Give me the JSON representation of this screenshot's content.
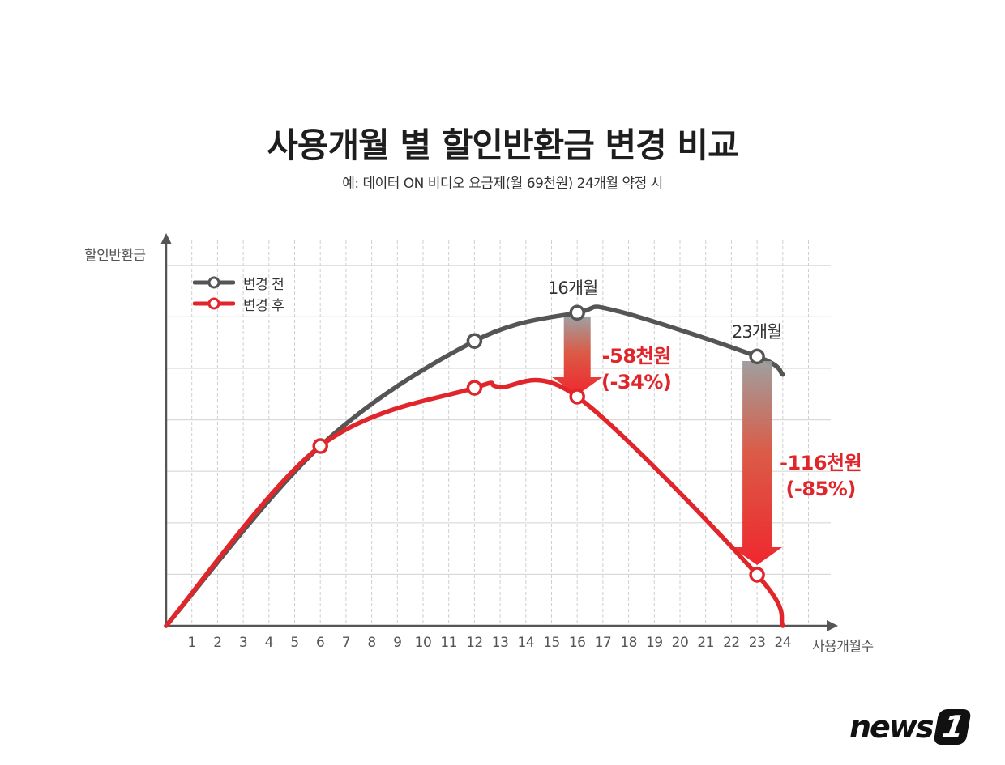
{
  "title": "사용개월 별 할인반환금 변경 비교",
  "subtitle": "예: 데이터 ON 비디오 요금제(월 69천원) 24개월 약정 시",
  "axes": {
    "y_label": "할인반환금",
    "x_label": "사용개월수",
    "x_ticks": [
      "1",
      "2",
      "3",
      "4",
      "5",
      "6",
      "7",
      "8",
      "9",
      "10",
      "11",
      "12",
      "13",
      "14",
      "15",
      "16",
      "17",
      "18",
      "19",
      "20",
      "21",
      "22",
      "23",
      "24"
    ]
  },
  "legend": [
    {
      "label": "변경 전",
      "color": "#555555"
    },
    {
      "label": "변경 후",
      "color": "#e0262b"
    }
  ],
  "annotations": {
    "month16_label": "16개월",
    "month23_label": "23개월",
    "diff16_amount": "-58천원",
    "diff16_percent": "(-34%)",
    "diff23_amount": "-116천원",
    "diff23_percent": "(-85%)"
  },
  "colors": {
    "before": "#555555",
    "after": "#e0262b",
    "grid": "#d9d9d9",
    "axis": "#555555"
  },
  "logo": {
    "text": "news",
    "number": "1"
  },
  "chart_data": {
    "type": "line",
    "title": "사용개월 별 할인반환금 변경 비교",
    "subtitle": "예: 데이터 ON 비디오 요금제(월 69천원) 24개월 약정 시",
    "xlabel": "사용개월수",
    "ylabel": "할인반환금",
    "x": [
      0,
      6,
      12,
      16,
      23,
      24
    ],
    "xlim": [
      0,
      24
    ],
    "ylim": [
      0,
      7
    ],
    "y_units": "grid units (unlabeled axis, relative)",
    "grid": true,
    "legend_position": "top-left",
    "series": [
      {
        "name": "변경 전",
        "color": "#555555",
        "points": [
          [
            0,
            0
          ],
          [
            6,
            3.49
          ],
          [
            12,
            5.53
          ],
          [
            16,
            6.08
          ],
          [
            17.5,
            6.12
          ],
          [
            23,
            5.23
          ],
          [
            24,
            4.88
          ]
        ],
        "markers": [
          [
            12,
            5.53
          ],
          [
            16,
            6.08
          ],
          [
            23,
            5.23
          ]
        ]
      },
      {
        "name": "변경 후",
        "color": "#e0262b",
        "points": [
          [
            0,
            0
          ],
          [
            6,
            3.49
          ],
          [
            12,
            4.62
          ],
          [
            13,
            4.64
          ],
          [
            16,
            4.45
          ],
          [
            23,
            0.99
          ],
          [
            24,
            0
          ]
        ],
        "markers": [
          [
            6,
            3.49
          ],
          [
            12,
            4.62
          ],
          [
            16,
            4.45
          ],
          [
            23,
            0.99
          ]
        ]
      }
    ],
    "annotations": [
      {
        "x": 16,
        "text": "16개월",
        "difference": "-58천원",
        "percent": "(-34%)"
      },
      {
        "x": 23,
        "text": "23개월",
        "difference": "-116천원",
        "percent": "(-85%)"
      }
    ]
  }
}
